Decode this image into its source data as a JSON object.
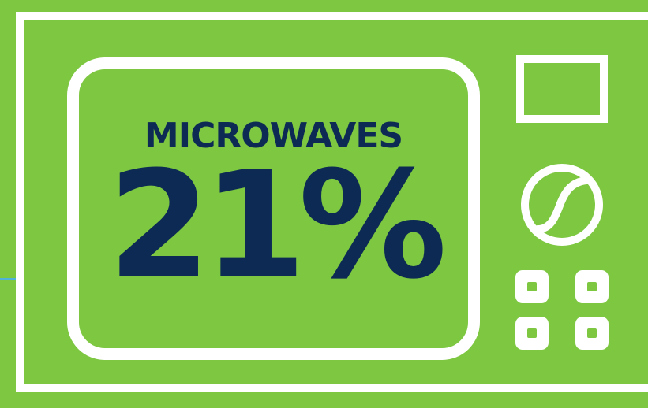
{
  "appliance": {
    "name": "MICROWAVES",
    "percentage": "21%"
  },
  "colors": {
    "background": "#7dc741",
    "outline": "#ffffff",
    "text": "#0d2a55"
  },
  "icons": {
    "display": "display-icon",
    "dial": "dial-icon",
    "buttons": "button-icon"
  }
}
